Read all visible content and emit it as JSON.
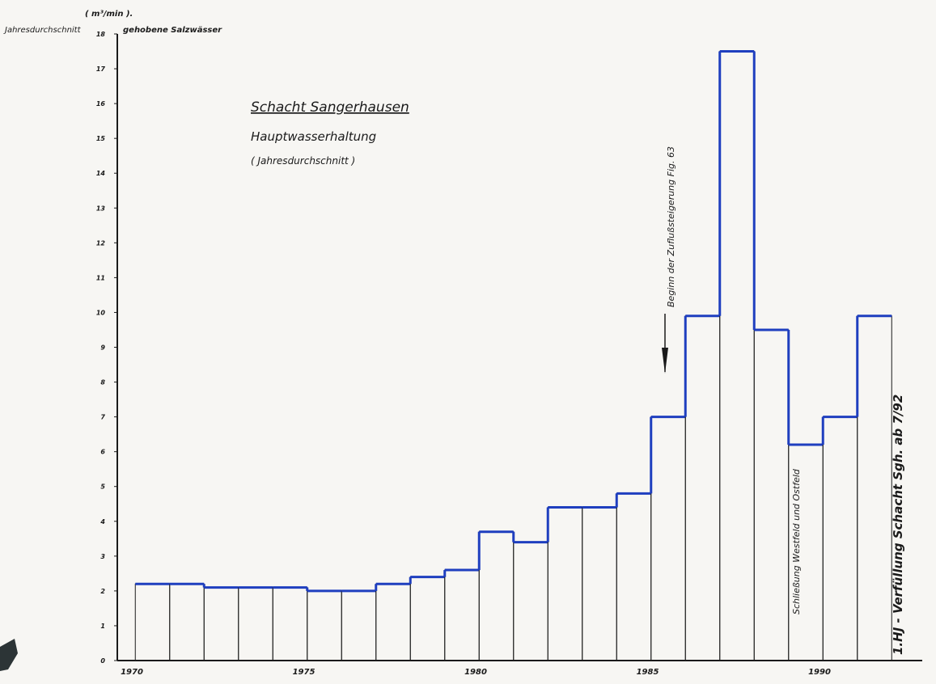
{
  "chart_data": {
    "type": "bar",
    "title": "Schacht Sangerhausen",
    "subtitle": "Hauptwasserhaltung",
    "subtitle2": "( Jahresdurchschnitt )",
    "unit_label": "( m³/min ).",
    "ylabel_left": "Jahresdurchschnitt",
    "ylabel_right": "gehobene Salzwässer",
    "ylim": [
      0,
      18
    ],
    "yticks": [
      0,
      1,
      2,
      3,
      4,
      5,
      6,
      7,
      8,
      9,
      10,
      11,
      12,
      13,
      14,
      15,
      16,
      17,
      18
    ],
    "xlim": [
      1970,
      1993
    ],
    "xticks": [
      1970,
      1975,
      1980,
      1985,
      1990
    ],
    "categories": [
      "1971",
      "1972",
      "1973",
      "1974",
      "1975",
      "1976",
      "1977",
      "1978",
      "1979",
      "1980",
      "1981",
      "1982",
      "1983",
      "1984",
      "1985",
      "1986",
      "1987",
      "1988",
      "1989",
      "1990",
      "1991",
      "1992"
    ],
    "values": [
      2.2,
      2.2,
      2.1,
      2.1,
      2.1,
      2.0,
      2.0,
      2.2,
      2.4,
      2.6,
      3.7,
      3.4,
      4.4,
      4.4,
      4.8,
      7.0,
      9.9,
      17.5,
      9.5,
      6.2,
      7.0,
      9.9
    ],
    "annotations": {
      "arrow_text": "Beginn der Zuflußsteigerung Fig. 63",
      "closure_text": "Schließung  Westfeld und Ostfeld",
      "backfill_text": "1.HJ - Verfüllung Schacht Sgh. ab 7/92"
    },
    "colors": {
      "ink": "#1a1a1a",
      "bar_outline": "#1f3fbf",
      "background": "#f7f6f3"
    }
  }
}
